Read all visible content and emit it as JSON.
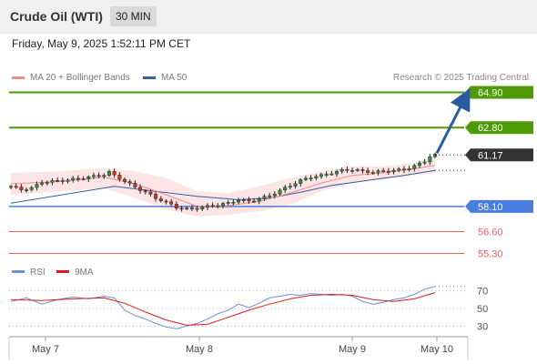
{
  "header": {
    "title": "Crude Oil (WTI)",
    "timeframe": "30 MIN",
    "timestamp": "Friday, May 9, 2025 1:52:11 PM CET"
  },
  "legend": {
    "ma20_label": "MA 20 + Bollinger Bands",
    "ma50_label": "MA 50",
    "credit": "Research © 2025 Trading Central",
    "rsi_label": "RSI",
    "rsi_ma_label": "9MA"
  },
  "colors": {
    "ma20": "#f08c8c",
    "ma50": "#3a5f9e",
    "bollinger_fill": "#fbdada",
    "resistance": "#4e9a06",
    "pivot": "#4a7ede",
    "support": "#ec5f5f",
    "arrow": "#2c5aa0",
    "rsi": "#6a8ed8",
    "rsi_ma": "#e31a1c",
    "current_price_bg": "#333333"
  },
  "chart_data": [
    {
      "type": "candlestick",
      "ylim": [
        55.0,
        65.2
      ],
      "x_ticks": [
        "May 7",
        "May 8",
        "May 9",
        "May 10"
      ],
      "current_price": 61.17,
      "levels": [
        {
          "value": 64.9,
          "label": "64.90",
          "kind": "resistance"
        },
        {
          "value": 62.8,
          "label": "62.80",
          "kind": "resistance"
        },
        {
          "value": 58.1,
          "label": "58.10",
          "kind": "pivot"
        },
        {
          "value": 56.6,
          "label": "56.60",
          "kind": "support"
        },
        {
          "value": 55.3,
          "label": "55.30",
          "kind": "support"
        }
      ],
      "close_path": [
        [
          0,
          59.3
        ],
        [
          2,
          59.1
        ],
        [
          4,
          59.2
        ],
        [
          6,
          59.55
        ],
        [
          8,
          59.6
        ],
        [
          10,
          59.65
        ],
        [
          12,
          59.72
        ],
        [
          14,
          59.8
        ],
        [
          16,
          59.9
        ],
        [
          18,
          60.0
        ],
        [
          19,
          60.15
        ],
        [
          20,
          59.95
        ],
        [
          22,
          59.6
        ],
        [
          24,
          59.25
        ],
        [
          26,
          58.95
        ],
        [
          28,
          58.6
        ],
        [
          30,
          58.35
        ],
        [
          32,
          58.05
        ],
        [
          34,
          57.95
        ],
        [
          36,
          58.0
        ],
        [
          38,
          58.1
        ],
        [
          40,
          58.2
        ],
        [
          42,
          58.3
        ],
        [
          44,
          58.5
        ],
        [
          46,
          58.4
        ],
        [
          48,
          58.55
        ],
        [
          50,
          58.75
        ],
        [
          52,
          59.05
        ],
        [
          54,
          59.35
        ],
        [
          56,
          59.65
        ],
        [
          58,
          59.85
        ],
        [
          60,
          59.95
        ],
        [
          62,
          60.1
        ],
        [
          64,
          60.25
        ],
        [
          66,
          60.3
        ],
        [
          68,
          60.2
        ],
        [
          70,
          60.15
        ],
        [
          72,
          60.2
        ],
        [
          74,
          60.25
        ],
        [
          76,
          60.3
        ],
        [
          78,
          60.5
        ],
        [
          80,
          60.8
        ],
        [
          81,
          61.1
        ],
        [
          82,
          61.17
        ]
      ],
      "ma20": [
        [
          0,
          59.45
        ],
        [
          10,
          59.6
        ],
        [
          18,
          59.85
        ],
        [
          24,
          59.45
        ],
        [
          30,
          58.8
        ],
        [
          36,
          58.1
        ],
        [
          42,
          58.15
        ],
        [
          48,
          58.4
        ],
        [
          54,
          58.9
        ],
        [
          60,
          59.5
        ],
        [
          66,
          59.95
        ],
        [
          72,
          60.1
        ],
        [
          78,
          60.35
        ],
        [
          82,
          60.55
        ]
      ],
      "ma50": [
        [
          0,
          58.3
        ],
        [
          10,
          58.8
        ],
        [
          20,
          59.3
        ],
        [
          28,
          59.0
        ],
        [
          36,
          58.7
        ],
        [
          44,
          58.5
        ],
        [
          50,
          58.6
        ],
        [
          56,
          58.95
        ],
        [
          62,
          59.35
        ],
        [
          70,
          59.7
        ],
        [
          76,
          59.95
        ],
        [
          82,
          60.25
        ]
      ],
      "bollinger_upper": [
        [
          0,
          60.1
        ],
        [
          10,
          60.2
        ],
        [
          18,
          60.4
        ],
        [
          24,
          60.2
        ],
        [
          30,
          59.8
        ],
        [
          36,
          59.0
        ],
        [
          42,
          58.9
        ],
        [
          48,
          59.3
        ],
        [
          54,
          59.8
        ],
        [
          60,
          60.2
        ],
        [
          66,
          60.5
        ],
        [
          72,
          60.5
        ],
        [
          78,
          60.7
        ],
        [
          82,
          61.1
        ]
      ],
      "bollinger_lower": [
        [
          0,
          58.8
        ],
        [
          10,
          59.0
        ],
        [
          18,
          59.2
        ],
        [
          24,
          58.6
        ],
        [
          30,
          57.9
        ],
        [
          36,
          57.5
        ],
        [
          42,
          57.6
        ],
        [
          48,
          57.8
        ],
        [
          54,
          58.2
        ],
        [
          60,
          59.0
        ],
        [
          66,
          59.5
        ],
        [
          72,
          59.7
        ],
        [
          78,
          59.95
        ],
        [
          82,
          60.1
        ]
      ],
      "projection": {
        "from": 61.17,
        "to": 64.9
      }
    },
    {
      "type": "line",
      "title": "RSI",
      "ylim": [
        20,
        80
      ],
      "y_ticks": [
        70,
        50,
        30
      ],
      "series": [
        {
          "name": "RSI",
          "values": [
            [
              0,
              58
            ],
            [
              3,
              62
            ],
            [
              6,
              55
            ],
            [
              9,
              60
            ],
            [
              12,
              63
            ],
            [
              15,
              61
            ],
            [
              18,
              64
            ],
            [
              20,
              62
            ],
            [
              22,
              48
            ],
            [
              24,
              42
            ],
            [
              26,
              38
            ],
            [
              28,
              33
            ],
            [
              30,
              29
            ],
            [
              32,
              27
            ],
            [
              34,
              30
            ],
            [
              36,
              33
            ],
            [
              38,
              38
            ],
            [
              40,
              44
            ],
            [
              42,
              48
            ],
            [
              44,
              55
            ],
            [
              46,
              51
            ],
            [
              48,
              56
            ],
            [
              50,
              62
            ],
            [
              52,
              64
            ],
            [
              54,
              66
            ],
            [
              56,
              65
            ],
            [
              58,
              67
            ],
            [
              60,
              66
            ],
            [
              62,
              65
            ],
            [
              64,
              66
            ],
            [
              66,
              64
            ],
            [
              68,
              58
            ],
            [
              70,
              55
            ],
            [
              72,
              57
            ],
            [
              74,
              60
            ],
            [
              76,
              62
            ],
            [
              78,
              66
            ],
            [
              80,
              72
            ],
            [
              82,
              75
            ]
          ]
        },
        {
          "name": "9MA",
          "values": [
            [
              0,
              60
            ],
            [
              6,
              59
            ],
            [
              12,
              61
            ],
            [
              18,
              62
            ],
            [
              22,
              56
            ],
            [
              26,
              46
            ],
            [
              30,
              37
            ],
            [
              34,
              31
            ],
            [
              38,
              32
            ],
            [
              42,
              40
            ],
            [
              46,
              48
            ],
            [
              50,
              55
            ],
            [
              54,
              61
            ],
            [
              58,
              65
            ],
            [
              62,
              66
            ],
            [
              66,
              65
            ],
            [
              70,
              60
            ],
            [
              74,
              58
            ],
            [
              78,
              61
            ],
            [
              82,
              68
            ]
          ]
        }
      ]
    }
  ]
}
